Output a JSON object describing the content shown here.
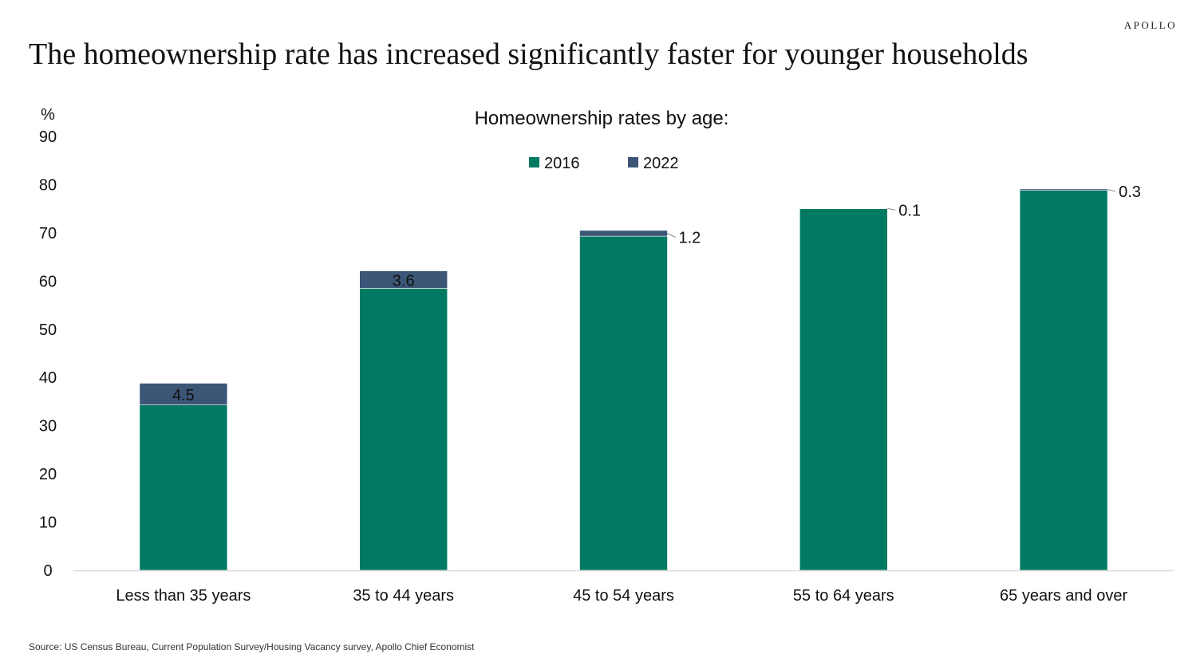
{
  "header": {
    "brand": "APOLLO",
    "headline": "The homeownership rate has increased significantly faster for younger households"
  },
  "footer": {
    "source": "Source: US Census Bureau, Current Population Survey/Housing Vacancy survey, Apollo Chief Economist"
  },
  "chart_data": {
    "type": "bar",
    "stacked": true,
    "title": "Homeownership rates by age:",
    "ylabel": "%",
    "xlabel": "",
    "ylim": [
      0,
      90
    ],
    "yticks": [
      0,
      10,
      20,
      30,
      40,
      50,
      60,
      70,
      80,
      90
    ],
    "grid": false,
    "legend_position": "top-center",
    "categories": [
      "Less than 35 years",
      "35 to 44 years",
      "45 to 54 years",
      "55 to 64 years",
      "65 years and over"
    ],
    "series": [
      {
        "name": "2016",
        "color": "#007A63",
        "values": [
          34.3,
          58.5,
          69.3,
          75.0,
          78.8
        ]
      },
      {
        "name": "2022",
        "color": "#3B5677",
        "values": [
          4.5,
          3.6,
          1.2,
          0.1,
          0.3
        ]
      }
    ],
    "data_labels": [
      "4.5",
      "3.6",
      "1.2",
      "0.1",
      "0.3"
    ]
  }
}
